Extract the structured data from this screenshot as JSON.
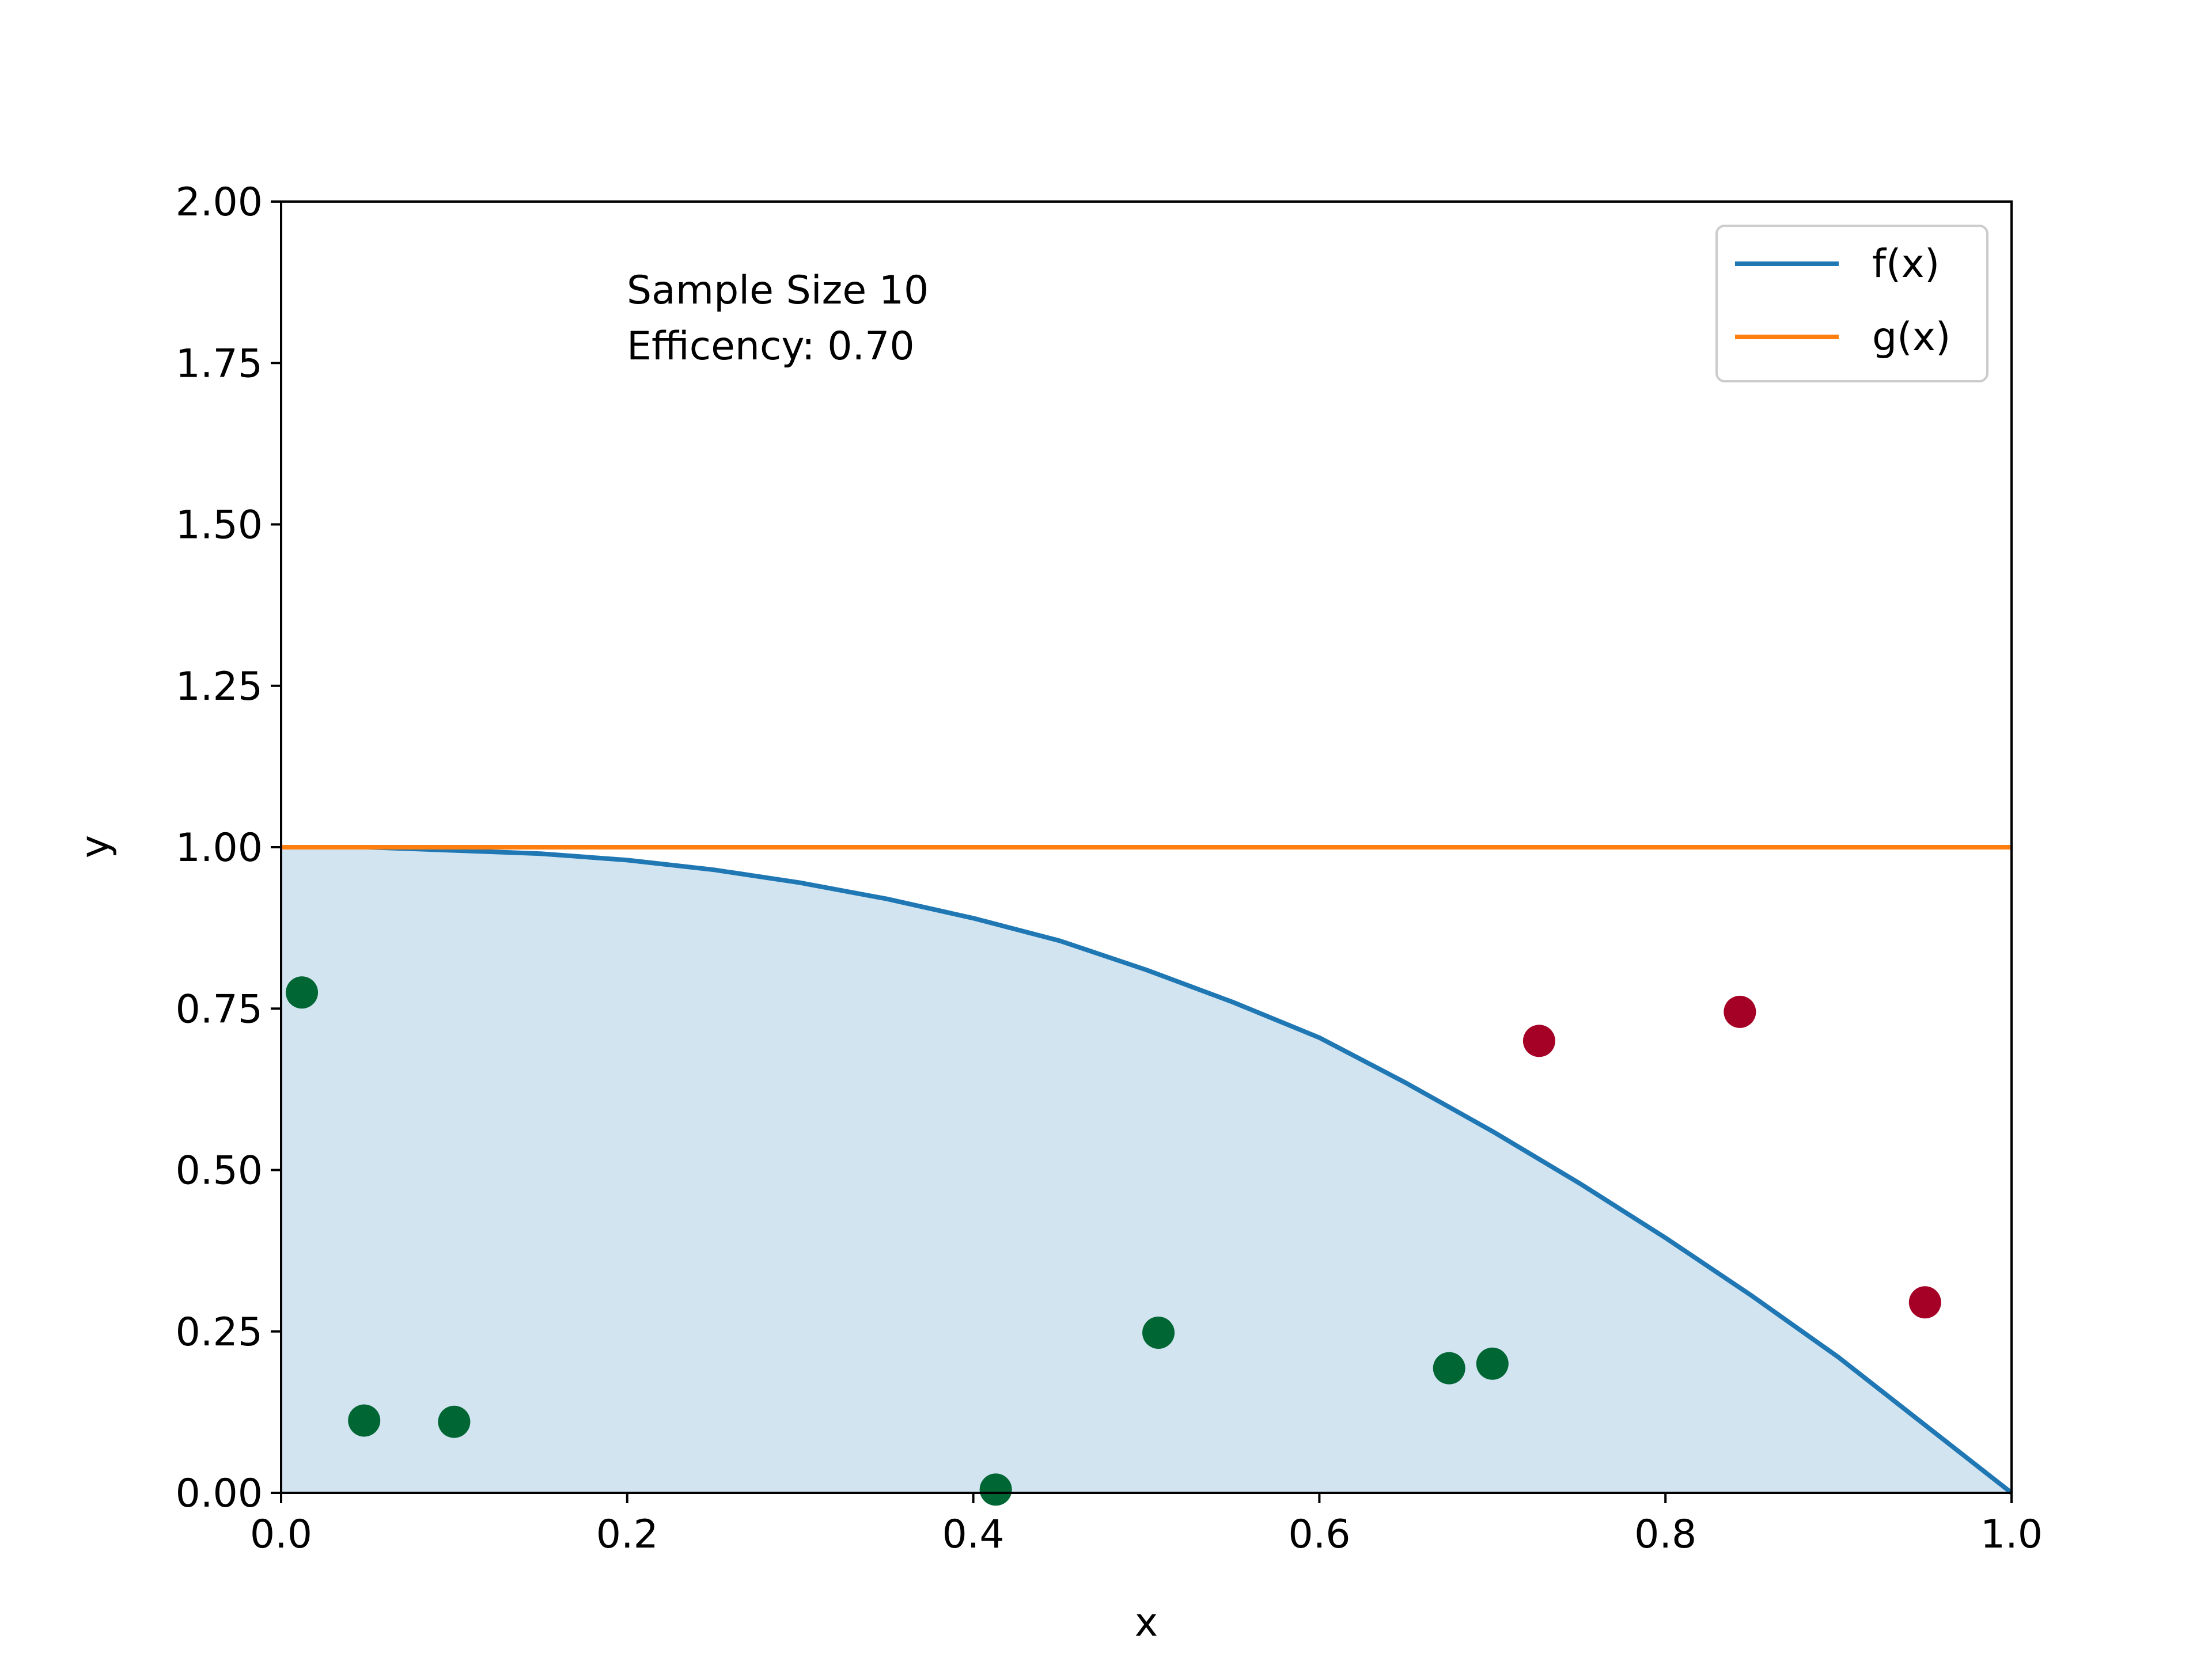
{
  "chart_data": {
    "type": "line",
    "title": "",
    "xlabel": "x",
    "ylabel": "y",
    "xlim": [
      0.0,
      1.0
    ],
    "ylim": [
      0.0,
      2.0
    ],
    "x_ticks": [
      0.0,
      0.2,
      0.4,
      0.6,
      0.8,
      1.0
    ],
    "x_tick_labels": [
      "0.0",
      "0.2",
      "0.4",
      "0.6",
      "0.8",
      "1.0"
    ],
    "y_ticks": [
      0.0,
      0.25,
      0.5,
      0.75,
      1.0,
      1.25,
      1.5,
      1.75,
      2.0
    ],
    "y_tick_labels": [
      "0.00",
      "0.25",
      "0.50",
      "0.75",
      "1.00",
      "1.25",
      "1.50",
      "1.75",
      "2.00"
    ],
    "grid": false,
    "legend_position": "top-right",
    "series": [
      {
        "name": "f(x)",
        "color": "#1f77b4",
        "fill": true,
        "fill_color": "#1f77b4",
        "fill_opacity": 0.2,
        "x": [
          0.0,
          0.05,
          0.1,
          0.15,
          0.2,
          0.25,
          0.3,
          0.35,
          0.4,
          0.45,
          0.5,
          0.55,
          0.6,
          0.65,
          0.7,
          0.75,
          0.8,
          0.85,
          0.9,
          0.95,
          1.0
        ],
        "y": [
          1.0,
          1.0,
          0.995,
          0.99,
          0.98,
          0.965,
          0.945,
          0.92,
          0.89,
          0.855,
          0.81,
          0.76,
          0.705,
          0.635,
          0.56,
          0.48,
          0.395,
          0.305,
          0.21,
          0.105,
          0.0
        ]
      },
      {
        "name": "g(x)",
        "color": "#ff7f0e",
        "fill": false,
        "x": [
          0.0,
          1.0
        ],
        "y": [
          1.0,
          1.0
        ]
      }
    ],
    "accepted_points": {
      "color": "#006633",
      "x": [
        0.012,
        0.048,
        0.1,
        0.413,
        0.507,
        0.675,
        0.7
      ],
      "y": [
        0.775,
        0.112,
        0.11,
        0.005,
        0.248,
        0.193,
        0.2
      ]
    },
    "rejected_points": {
      "color": "#a50026",
      "x": [
        0.727,
        0.843,
        0.95
      ],
      "y": [
        0.7,
        0.745,
        0.295
      ]
    },
    "annotations": [
      "Sample Size 10",
      "Efficency: 0.70"
    ]
  }
}
